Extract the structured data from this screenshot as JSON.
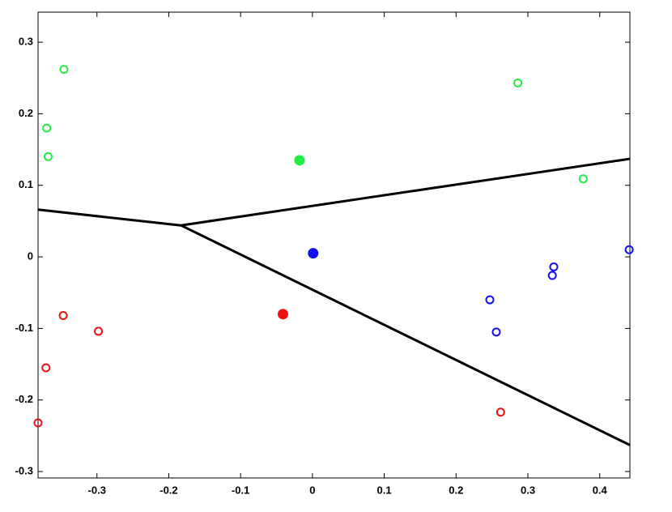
{
  "chart_data": {
    "type": "scatter",
    "xlim": [
      -0.382,
      0.442
    ],
    "ylim": [
      -0.309,
      0.342
    ],
    "xticks": [
      -0.3,
      -0.2,
      -0.1,
      0,
      0.1,
      0.2,
      0.3,
      0.4
    ],
    "yticks": [
      -0.3,
      -0.2,
      -0.1,
      0,
      0.1,
      0.2,
      0.3
    ],
    "series": [
      {
        "color": "#22ee44",
        "marker": "open",
        "x": [
          -0.346,
          -0.37,
          -0.368,
          0.286,
          0.377
        ],
        "y": [
          0.262,
          0.18,
          0.14,
          0.243,
          0.109
        ]
      },
      {
        "color": "#22ee44",
        "marker": "filled",
        "x": [
          -0.018
        ],
        "y": [
          0.135
        ]
      },
      {
        "color": "#1111ee",
        "marker": "open",
        "x": [
          0.441,
          0.336,
          0.334,
          0.247,
          0.256
        ],
        "y": [
          0.01,
          -0.014,
          -0.026,
          -0.06,
          -0.105
        ]
      },
      {
        "color": "#1111ee",
        "marker": "filled",
        "x": [
          0.001
        ],
        "y": [
          0.005
        ]
      },
      {
        "color": "#ee1111",
        "marker": "open",
        "x": [
          -0.347,
          -0.298,
          -0.371,
          -0.382,
          0.262
        ],
        "y": [
          -0.082,
          -0.104,
          -0.155,
          -0.232,
          -0.217
        ]
      },
      {
        "color": "#ee1111",
        "marker": "filled",
        "x": [
          -0.041
        ],
        "y": [
          -0.08
        ]
      },
      {
        "color": "#000000",
        "marker": "line",
        "x": [
          -0.382,
          -0.183
        ],
        "y": [
          0.066,
          0.044
        ]
      },
      {
        "color": "#000000",
        "marker": "line",
        "x": [
          -0.183,
          0.442
        ],
        "y": [
          0.044,
          0.137
        ]
      },
      {
        "color": "#000000",
        "marker": "line",
        "x": [
          -0.183,
          0.442
        ],
        "y": [
          0.044,
          -0.263
        ]
      }
    ]
  }
}
